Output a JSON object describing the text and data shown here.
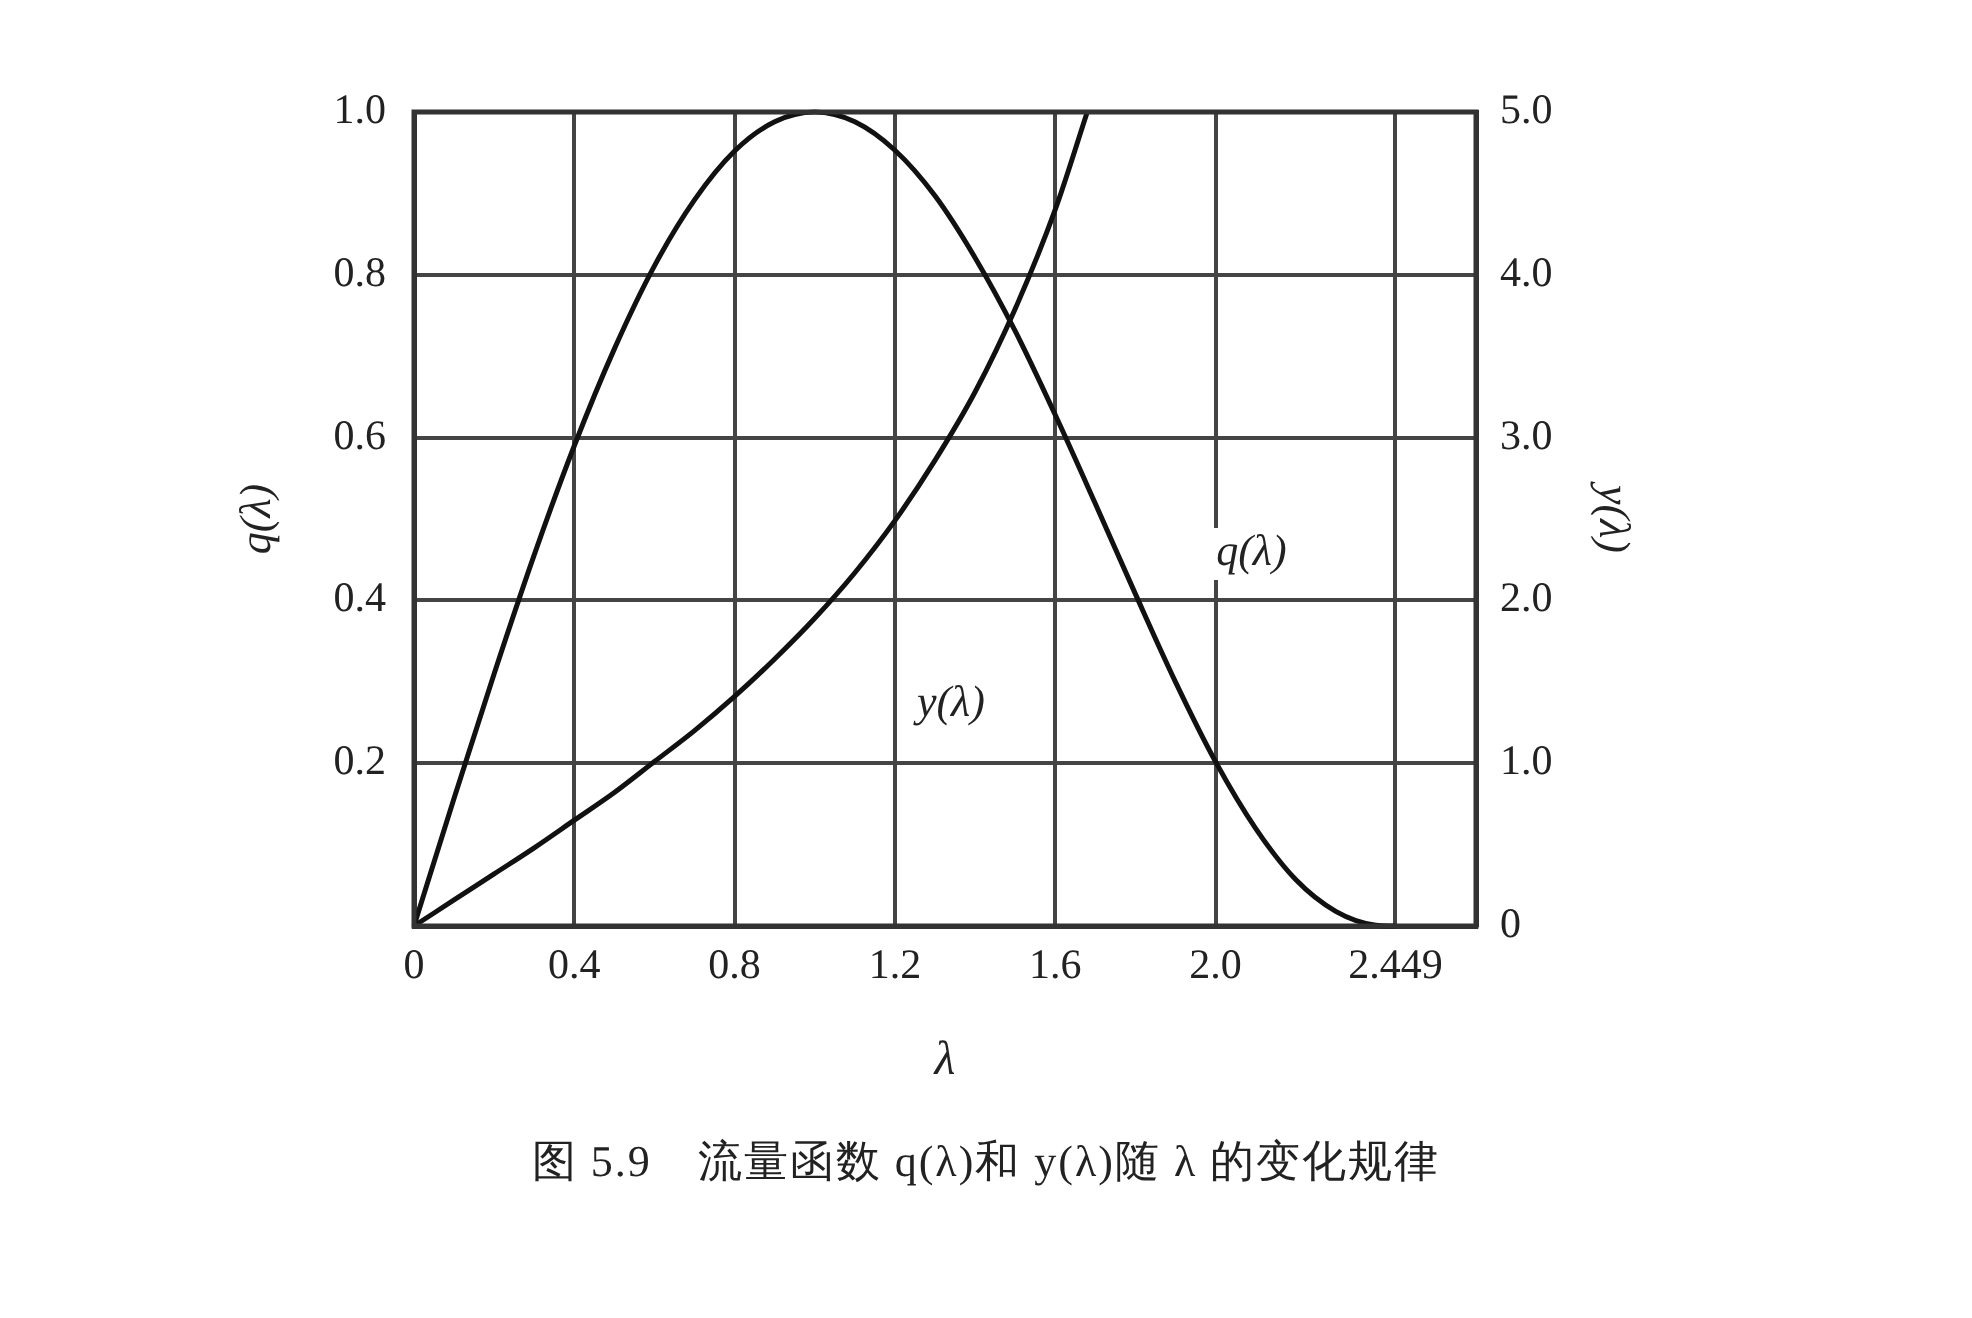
{
  "chart_data": {
    "type": "line",
    "xlabel": "λ",
    "ylabel": "q(λ)",
    "y2label": "y(λ)",
    "annotations": [
      "图 5.9　流量函数 q(λ)和 y(λ)随 λ 的变化规律"
    ],
    "xlim": [
      0,
      2.65
    ],
    "xticks": [
      0,
      0.4,
      0.8,
      1.2,
      1.6,
      {
        "value": 2.0,
        "label": "2.0"
      },
      2.449
    ],
    "ylim": [
      0,
      1.0
    ],
    "yticks": [
      {
        "value": 0,
        "label": null
      },
      0.2,
      0.4,
      0.6,
      0.8,
      {
        "value": 1.0,
        "label": "1.0"
      }
    ],
    "y2lim": [
      0,
      5.0
    ],
    "y2ticks": [
      0,
      {
        "value": 1,
        "label": "1.0"
      },
      {
        "value": 2,
        "label": "2.0"
      },
      {
        "value": 3,
        "label": "3.0"
      },
      {
        "value": 4,
        "label": "4.0"
      },
      {
        "value": 5,
        "label": "5.0"
      }
    ],
    "grid": true,
    "marker": "none",
    "line_style": "solid",
    "series": [
      {
        "name": "q(λ)",
        "color": "#111111",
        "x": [
          0,
          0.1,
          0.2,
          0.3,
          0.4,
          0.5,
          0.6,
          0.7,
          0.8,
          0.9,
          1.0,
          1.1,
          1.2,
          1.3,
          1.4,
          1.5,
          1.6,
          1.7,
          1.8,
          1.9,
          2.0,
          2.1,
          2.2,
          2.3,
          2.4,
          2.449
        ],
        "values": [
          0,
          0.157,
          0.31,
          0.456,
          0.59,
          0.709,
          0.811,
          0.892,
          0.952,
          0.988,
          1.0,
          0.988,
          0.953,
          0.897,
          0.821,
          0.731,
          0.628,
          0.519,
          0.408,
          0.3,
          0.202,
          0.12,
          0.057,
          0.018,
          0.001,
          0
        ]
      },
      {
        "name": "y(λ)",
        "color": "#111111",
        "axis": "y2",
        "x": [
          0,
          0.1,
          0.2,
          0.3,
          0.4,
          0.5,
          0.6,
          0.7,
          0.8,
          0.9,
          1.0,
          1.1,
          1.2,
          1.3,
          1.4,
          1.5,
          1.6,
          1.68
        ],
        "values": [
          0,
          0.16,
          0.32,
          0.48,
          0.65,
          0.82,
          1.01,
          1.2,
          1.41,
          1.64,
          1.89,
          2.17,
          2.49,
          2.86,
          3.28,
          3.79,
          4.4,
          5.0
        ]
      }
    ]
  }
}
